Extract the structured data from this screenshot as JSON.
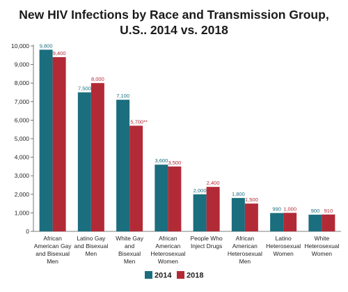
{
  "chart_data": {
    "type": "bar",
    "title_line1": "New HIV Infections by Race and Transmission Group,",
    "title_line2": "U.S.. 2014 vs. 2018",
    "xlabel": "",
    "ylabel": "",
    "ylim": [
      0,
      10000
    ],
    "yticks": [
      "0",
      "1,000",
      "2,000",
      "3,000",
      "4,000",
      "5,000",
      "6,000",
      "7,000",
      "8,000",
      "9,000",
      "10,000"
    ],
    "grid": false,
    "legend_position": "bottom",
    "categories": [
      [
        "African",
        "American Gay",
        "and Bisexual",
        "Men"
      ],
      [
        "Latino Gay",
        "and Bisexual",
        "Men"
      ],
      [
        "White Gay",
        "and",
        "Bisexual",
        "Men"
      ],
      [
        "African",
        "American",
        "Heterosexual",
        "Women"
      ],
      [
        "People Who",
        "Inject Drugs"
      ],
      [
        "African",
        "American",
        "Heterosexual",
        "Men"
      ],
      [
        "Latino",
        "Heterosexual",
        "Women"
      ],
      [
        "White",
        "Heterosexual",
        "Women"
      ]
    ],
    "series": [
      {
        "name": "2014",
        "color": "#1a6e7e",
        "values": [
          9800,
          7500,
          7100,
          3600,
          2000,
          1800,
          990,
          900
        ],
        "labels": [
          "9,800",
          "7,500",
          "7,100",
          "3,600",
          "2,000",
          "1,800",
          "990",
          "900"
        ]
      },
      {
        "name": "2018",
        "color": "#b32a37",
        "values": [
          9400,
          8000,
          5700,
          3500,
          2400,
          1500,
          1000,
          910
        ],
        "labels": [
          "9,400",
          "8,000",
          "5,700**",
          "3,500",
          "2,400",
          "1,500",
          "1,000",
          "910"
        ]
      }
    ]
  }
}
